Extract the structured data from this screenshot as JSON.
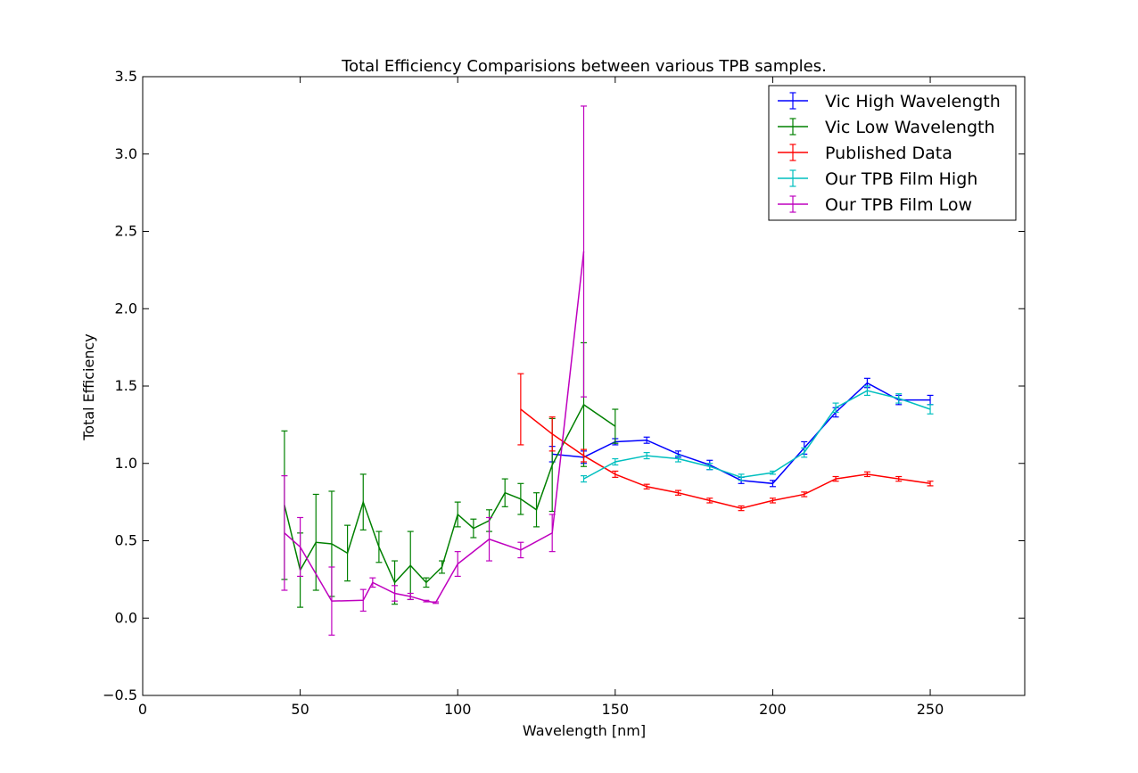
{
  "chart_data": {
    "type": "line",
    "title": "Total Efficiency Comparisions between various TPB samples.",
    "xlabel": "Wavelength [nm]",
    "ylabel": "Total Efficiency",
    "xlim": [
      0,
      280
    ],
    "ylim": [
      -0.5,
      3.5
    ],
    "xticks": [
      0,
      50,
      100,
      150,
      200,
      250
    ],
    "xtick_labels": [
      "0",
      "50",
      "100",
      "150",
      "200",
      "250"
    ],
    "yticks": [
      -0.5,
      0.0,
      0.5,
      1.0,
      1.5,
      2.0,
      2.5,
      3.0,
      3.5
    ],
    "ytick_labels": [
      "−0.5",
      "0.0",
      "0.5",
      "1.0",
      "1.5",
      "2.0",
      "2.5",
      "3.0",
      "3.5"
    ],
    "legend_position": "top-right",
    "grid": false,
    "series": [
      {
        "name": "Vic High Wavelength",
        "color": "#0000ff",
        "points": [
          {
            "x": 130,
            "y": 1.06,
            "err": 0.05
          },
          {
            "x": 140,
            "y": 1.04,
            "err": 0.04
          },
          {
            "x": 150,
            "y": 1.14,
            "err": 0.02
          },
          {
            "x": 160,
            "y": 1.15,
            "err": 0.02
          },
          {
            "x": 170,
            "y": 1.06,
            "err": 0.02
          },
          {
            "x": 180,
            "y": 0.99,
            "err": 0.03
          },
          {
            "x": 190,
            "y": 0.89,
            "err": 0.02
          },
          {
            "x": 200,
            "y": 0.87,
            "err": 0.02
          },
          {
            "x": 210,
            "y": 1.1,
            "err": 0.04
          },
          {
            "x": 220,
            "y": 1.33,
            "err": 0.03
          },
          {
            "x": 230,
            "y": 1.52,
            "err": 0.03
          },
          {
            "x": 240,
            "y": 1.41,
            "err": 0.03
          },
          {
            "x": 250,
            "y": 1.41,
            "err": 0.03
          }
        ]
      },
      {
        "name": "Vic Low Wavelength",
        "color": "#008000",
        "points": [
          {
            "x": 45,
            "y": 0.73,
            "err": 0.48
          },
          {
            "x": 50,
            "y": 0.31,
            "err": 0.24
          },
          {
            "x": 55,
            "y": 0.49,
            "err": 0.31
          },
          {
            "x": 60,
            "y": 0.48,
            "err": 0.34
          },
          {
            "x": 65,
            "y": 0.42,
            "err": 0.18
          },
          {
            "x": 70,
            "y": 0.75,
            "err": 0.18
          },
          {
            "x": 75,
            "y": 0.46,
            "err": 0.1
          },
          {
            "x": 80,
            "y": 0.23,
            "err": 0.14
          },
          {
            "x": 85,
            "y": 0.34,
            "err": 0.22
          },
          {
            "x": 90,
            "y": 0.23,
            "err": 0.03
          },
          {
            "x": 95,
            "y": 0.33,
            "err": 0.04
          },
          {
            "x": 100,
            "y": 0.67,
            "err": 0.08
          },
          {
            "x": 105,
            "y": 0.58,
            "err": 0.06
          },
          {
            "x": 110,
            "y": 0.63,
            "err": 0.07
          },
          {
            "x": 115,
            "y": 0.81,
            "err": 0.09
          },
          {
            "x": 120,
            "y": 0.77,
            "err": 0.1
          },
          {
            "x": 125,
            "y": 0.7,
            "err": 0.11
          },
          {
            "x": 130,
            "y": 0.99,
            "err": 0.3
          },
          {
            "x": 140,
            "y": 1.38,
            "err": 0.4
          },
          {
            "x": 150,
            "y": 1.24,
            "err": 0.11
          }
        ]
      },
      {
        "name": "Published Data",
        "color": "#ff0000",
        "points": [
          {
            "x": 120,
            "y": 1.35,
            "err": 0.23
          },
          {
            "x": 130,
            "y": 1.19,
            "err": 0.11
          },
          {
            "x": 140,
            "y": 1.05,
            "err": 0.04
          },
          {
            "x": 150,
            "y": 0.93,
            "err": 0.02
          },
          {
            "x": 160,
            "y": 0.85,
            "err": 0.015
          },
          {
            "x": 170,
            "y": 0.81,
            "err": 0.015
          },
          {
            "x": 180,
            "y": 0.76,
            "err": 0.015
          },
          {
            "x": 190,
            "y": 0.71,
            "err": 0.015
          },
          {
            "x": 200,
            "y": 0.76,
            "err": 0.015
          },
          {
            "x": 210,
            "y": 0.8,
            "err": 0.015
          },
          {
            "x": 220,
            "y": 0.9,
            "err": 0.015
          },
          {
            "x": 230,
            "y": 0.93,
            "err": 0.015
          },
          {
            "x": 240,
            "y": 0.9,
            "err": 0.015
          },
          {
            "x": 250,
            "y": 0.87,
            "err": 0.015
          }
        ]
      },
      {
        "name": "Our TPB Film High",
        "color": "#00bfbf",
        "points": [
          {
            "x": 140,
            "y": 0.9,
            "err": 0.02
          },
          {
            "x": 150,
            "y": 1.01,
            "err": 0.02
          },
          {
            "x": 160,
            "y": 1.05,
            "err": 0.02
          },
          {
            "x": 170,
            "y": 1.03,
            "err": 0.02
          },
          {
            "x": 180,
            "y": 0.98,
            "err": 0.02
          },
          {
            "x": 190,
            "y": 0.91,
            "err": 0.02
          },
          {
            "x": 200,
            "y": 0.94,
            "err": 0.01
          },
          {
            "x": 210,
            "y": 1.07,
            "err": 0.03
          },
          {
            "x": 220,
            "y": 1.36,
            "err": 0.03
          },
          {
            "x": 230,
            "y": 1.47,
            "err": 0.03
          },
          {
            "x": 240,
            "y": 1.42,
            "err": 0.03
          },
          {
            "x": 250,
            "y": 1.35,
            "err": 0.03
          }
        ]
      },
      {
        "name": "Our TPB Film Low",
        "color": "#bf00bf",
        "points": [
          {
            "x": 45,
            "y": 0.55,
            "err": 0.37
          },
          {
            "x": 50,
            "y": 0.46,
            "err": 0.19
          },
          {
            "x": 60,
            "y": 0.11,
            "err": 0.22
          },
          {
            "x": 70,
            "y": 0.115,
            "err": 0.07
          },
          {
            "x": 73,
            "y": 0.23,
            "err": 0.03
          },
          {
            "x": 80,
            "y": 0.16,
            "err": 0.05
          },
          {
            "x": 85,
            "y": 0.14,
            "err": 0.02
          },
          {
            "x": 90,
            "y": 0.11,
            "err": 0.005
          },
          {
            "x": 93,
            "y": 0.1,
            "err": 0.005
          },
          {
            "x": 100,
            "y": 0.35,
            "err": 0.08
          },
          {
            "x": 110,
            "y": 0.51,
            "err": 0.14
          },
          {
            "x": 120,
            "y": 0.44,
            "err": 0.05
          },
          {
            "x": 130,
            "y": 0.55,
            "err": 0.12
          },
          {
            "x": 140,
            "y": 2.37,
            "err": 0.94
          }
        ]
      }
    ]
  }
}
